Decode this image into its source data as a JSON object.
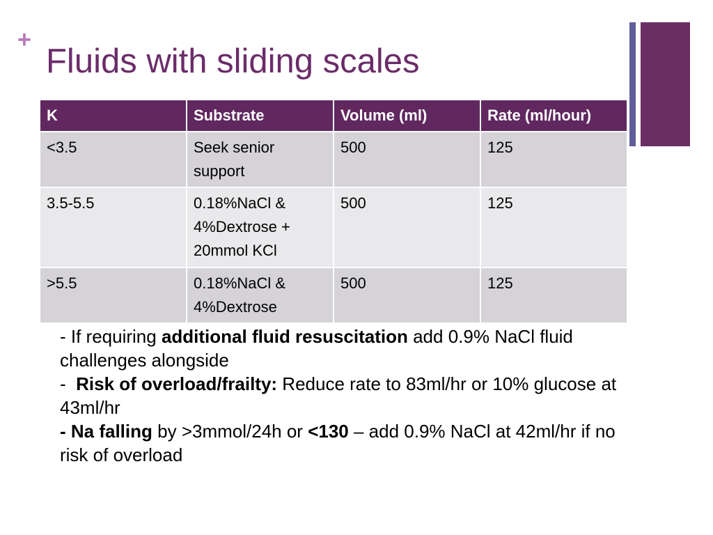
{
  "header": {
    "marker": "+",
    "title": "Fluids with sliding scales"
  },
  "table": {
    "columns": [
      "K",
      "Substrate",
      "Volume (ml)",
      "Rate (ml/hour)"
    ],
    "rows": [
      [
        "<3.5",
        "Seek senior support",
        "500",
        "125"
      ],
      [
        "3.5-5.5",
        "0.18%NaCl & 4%Dextrose + 20mmol KCl",
        "500",
        "125"
      ],
      [
        ">5.5",
        "0.18%NaCl & 4%Dextrose",
        "500",
        "125"
      ]
    ]
  },
  "notes": [
    [
      {
        "text": "- If requiring ",
        "bold": false
      },
      {
        "text": "additional fluid resuscitation",
        "bold": true
      },
      {
        "text": " add 0.9% NaCl fluid challenges alongside",
        "bold": false
      }
    ],
    [
      {
        "text": "-  ",
        "bold": false
      },
      {
        "text": "Risk of overload/frailty:",
        "bold": true
      },
      {
        "text": " Reduce rate to 83ml/hr or 10% glucose at 43ml/hr",
        "bold": false
      }
    ],
    [
      {
        "text": "- Na falling",
        "bold": true
      },
      {
        "text": " by >3mmol/24h or ",
        "bold": false
      },
      {
        "text": "<130",
        "bold": true
      },
      {
        "text": " – add 0.9% NaCl at 42ml/hr if no risk of overload",
        "bold": false
      }
    ]
  ]
}
